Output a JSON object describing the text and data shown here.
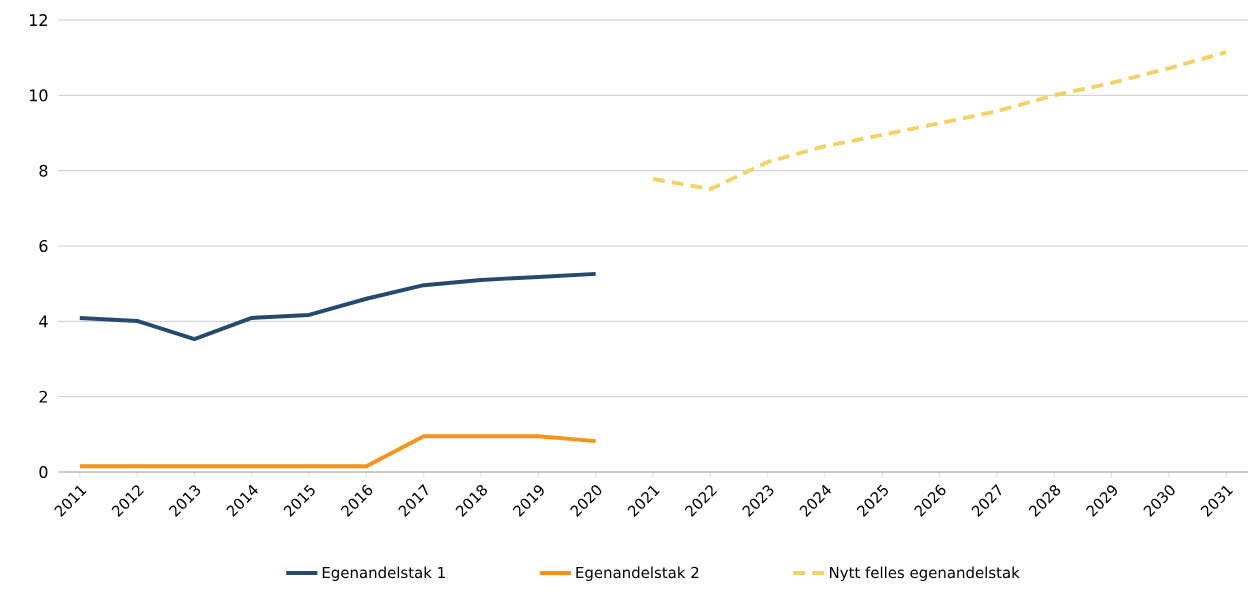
{
  "chart_data": {
    "type": "line",
    "categories": [
      "2011",
      "2012",
      "2013",
      "2014",
      "2015",
      "2016",
      "2017",
      "2018",
      "2019",
      "2020",
      "2021",
      "2022",
      "2023",
      "2024",
      "2025",
      "2026",
      "2027",
      "2028",
      "2029",
      "2030",
      "2031"
    ],
    "series": [
      {
        "name": "Egenandelstak 1",
        "color": "#264a6e",
        "line_style": "solid",
        "values": [
          4.09,
          4.01,
          3.53,
          4.09,
          4.17,
          4.6,
          4.96,
          5.1,
          5.18,
          5.26,
          null,
          null,
          null,
          null,
          null,
          null,
          null,
          null,
          null,
          null,
          null
        ]
      },
      {
        "name": "Egenandelstak 2",
        "color": "#f7941d",
        "line_style": "solid",
        "values": [
          0.15,
          0.15,
          0.15,
          0.15,
          0.15,
          0.15,
          0.95,
          0.95,
          0.95,
          0.82,
          null,
          null,
          null,
          null,
          null,
          null,
          null,
          null,
          null,
          null,
          null
        ]
      },
      {
        "name": "Nytt felles egenandelstak",
        "color": "#f2d36b",
        "line_style": "dashed",
        "values": [
          null,
          null,
          null,
          null,
          null,
          null,
          null,
          null,
          null,
          null,
          7.78,
          7.51,
          8.23,
          8.65,
          8.95,
          9.26,
          9.58,
          10.0,
          10.33,
          10.72,
          11.15
        ]
      }
    ],
    "ylim": [
      0,
      12
    ],
    "yticks": [
      0,
      2,
      4,
      6,
      8,
      10,
      12
    ],
    "grid": "y",
    "legend": "bottom",
    "marker": "none"
  }
}
